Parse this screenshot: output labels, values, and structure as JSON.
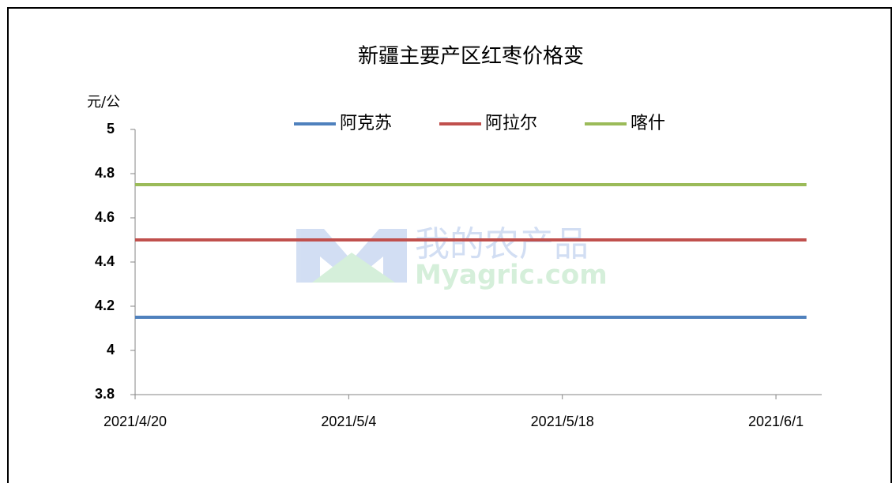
{
  "chart_data": {
    "type": "line",
    "title": "新疆主要产区红枣价格变",
    "y_label": "元/公",
    "watermark": [
      "我的农产品",
      "Myagric.com"
    ],
    "x": [
      "2021/4/20",
      "2021/6/3"
    ],
    "xlim": [
      "2021/4/20",
      "2021/6/4"
    ],
    "xticks": [
      "2021/4/20",
      "2021/5/4",
      "2021/5/18",
      "2021/6/1"
    ],
    "ylim": [
      3.8,
      5
    ],
    "yticks": [
      3.8,
      4,
      4.2,
      4.4,
      4.6,
      4.8,
      5
    ],
    "grid": false,
    "legend": "top",
    "series": [
      {
        "name": "阿克苏",
        "color": "#4f81bd",
        "values": [
          4.15,
          4.15
        ]
      },
      {
        "name": "阿拉尔",
        "color": "#c0504d",
        "values": [
          4.5,
          4.5
        ]
      },
      {
        "name": "喀什",
        "color": "#9bbb59",
        "values": [
          4.75,
          4.75
        ]
      }
    ]
  }
}
